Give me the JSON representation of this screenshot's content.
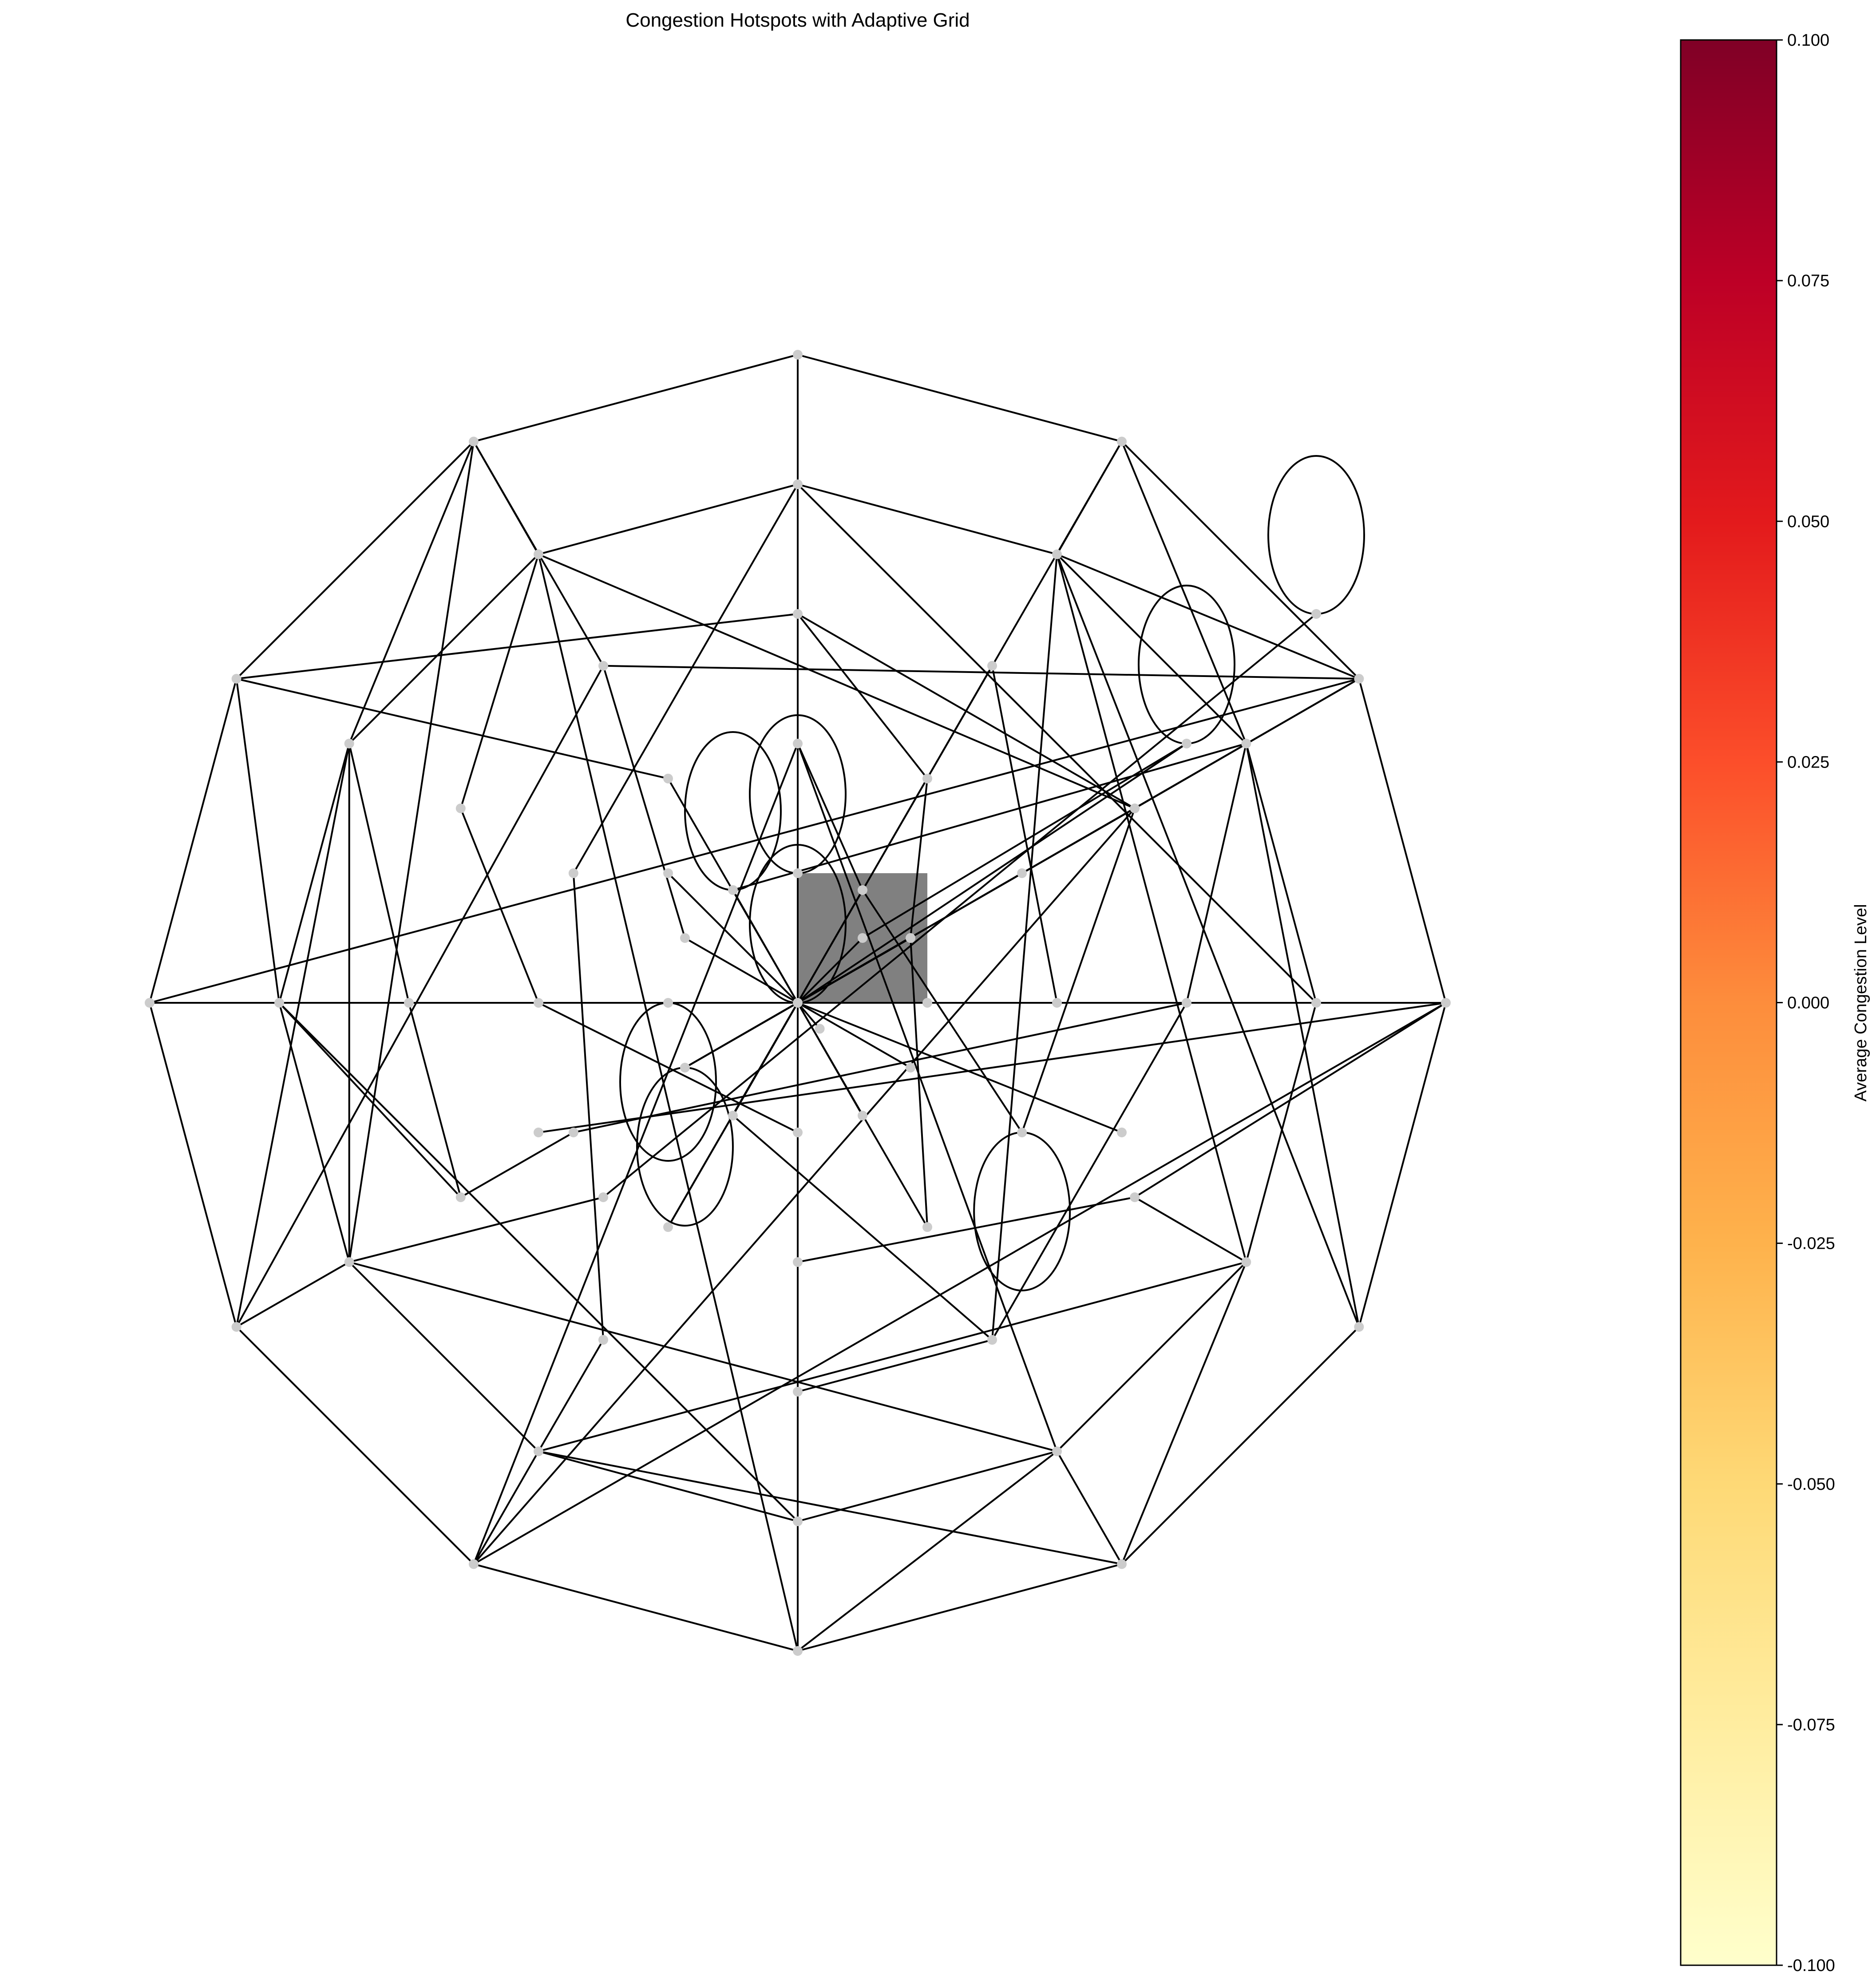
{
  "chart_data": {
    "type": "network",
    "title": "Congestion Hotspots with Adaptive Grid",
    "colorbar": {
      "label": "Average Congestion Level",
      "range": [
        -0.1,
        0.1
      ],
      "ticks": [
        "0.100",
        "0.075",
        "0.050",
        "0.025",
        "0.000",
        "-0.025",
        "-0.050",
        "-0.075",
        "-0.100"
      ],
      "colormap": "YlOrRd",
      "colors": [
        "#ffffcc",
        "#ffeda0",
        "#fed976",
        "#feb24c",
        "#fd8d3c",
        "#fc4e2a",
        "#e31a1c",
        "#bd0026",
        "#800026"
      ]
    },
    "hotspot_color": "#808080",
    "node_color": "#cccccc",
    "edge_color": "#000000",
    "nodes": [
      {
        "id": "n0",
        "x": 0.0,
        "y": 5.0
      },
      {
        "id": "n1",
        "x": 2.5,
        "y": 4.33
      },
      {
        "id": "n2",
        "x": 4.33,
        "y": 2.5
      },
      {
        "id": "n3",
        "x": 5.0,
        "y": 0.0
      },
      {
        "id": "n4",
        "x": 4.33,
        "y": -2.5
      },
      {
        "id": "n5",
        "x": 2.5,
        "y": -4.33
      },
      {
        "id": "n6",
        "x": 0.0,
        "y": -5.0
      },
      {
        "id": "n7",
        "x": -2.5,
        "y": -4.33
      },
      {
        "id": "n8",
        "x": -4.33,
        "y": -2.5
      },
      {
        "id": "n9",
        "x": -5.0,
        "y": 0.0
      },
      {
        "id": "n10",
        "x": -4.33,
        "y": 2.5
      },
      {
        "id": "n11",
        "x": -2.5,
        "y": 4.33
      },
      {
        "id": "n12",
        "x": 0.0,
        "y": 4.0
      },
      {
        "id": "n13",
        "x": 2.0,
        "y": 3.46
      },
      {
        "id": "n14",
        "x": 3.46,
        "y": 2.0
      },
      {
        "id": "n15",
        "x": 4.0,
        "y": 0.0
      },
      {
        "id": "n16",
        "x": 3.46,
        "y": -2.0
      },
      {
        "id": "n17",
        "x": 2.0,
        "y": -3.46
      },
      {
        "id": "n18",
        "x": 0.0,
        "y": -4.0
      },
      {
        "id": "n19",
        "x": -2.0,
        "y": -3.46
      },
      {
        "id": "n20",
        "x": -3.46,
        "y": -2.0
      },
      {
        "id": "n21",
        "x": -4.0,
        "y": 0.0
      },
      {
        "id": "n22",
        "x": -3.46,
        "y": 2.0
      },
      {
        "id": "n23",
        "x": -2.0,
        "y": 3.46
      },
      {
        "id": "n24",
        "x": 0.0,
        "y": 3.0
      },
      {
        "id": "n25",
        "x": 1.5,
        "y": 2.6
      },
      {
        "id": "n26",
        "x": 2.6,
        "y": 1.5
      },
      {
        "id": "n27",
        "x": 3.0,
        "y": 0.0
      },
      {
        "id": "n28",
        "x": 2.6,
        "y": -1.5
      },
      {
        "id": "n29",
        "x": 1.5,
        "y": -2.6
      },
      {
        "id": "n30",
        "x": 0.0,
        "y": -3.0
      },
      {
        "id": "n31",
        "x": -1.5,
        "y": -2.6
      },
      {
        "id": "n32",
        "x": -2.6,
        "y": -1.5
      },
      {
        "id": "n33",
        "x": -3.0,
        "y": 0.0
      },
      {
        "id": "n34",
        "x": -2.6,
        "y": 1.5
      },
      {
        "id": "n35",
        "x": -1.5,
        "y": 2.6
      },
      {
        "id": "n36",
        "x": 0.0,
        "y": 2.0
      },
      {
        "id": "n37",
        "x": 1.0,
        "y": 1.73
      },
      {
        "id": "n38",
        "x": 1.73,
        "y": 1.0
      },
      {
        "id": "n39",
        "x": 2.0,
        "y": 0.0
      },
      {
        "id": "n40",
        "x": 1.73,
        "y": -1.0
      },
      {
        "id": "n41",
        "x": 1.0,
        "y": -1.73
      },
      {
        "id": "n42",
        "x": 0.0,
        "y": -2.0
      },
      {
        "id": "n43",
        "x": -1.0,
        "y": -1.73
      },
      {
        "id": "n44",
        "x": -1.73,
        "y": -1.0
      },
      {
        "id": "n45",
        "x": -2.0,
        "y": 0.0
      },
      {
        "id": "n46",
        "x": -1.73,
        "y": 1.0
      },
      {
        "id": "n47",
        "x": -1.0,
        "y": 1.73
      },
      {
        "id": "n48",
        "x": 0.0,
        "y": 1.0
      },
      {
        "id": "n49",
        "x": 0.5,
        "y": 0.87
      },
      {
        "id": "n50",
        "x": 0.87,
        "y": 0.5
      },
      {
        "id": "n51",
        "x": 1.0,
        "y": 0.0
      },
      {
        "id": "n52",
        "x": 0.87,
        "y": -0.5
      },
      {
        "id": "n53",
        "x": 0.5,
        "y": -0.87
      },
      {
        "id": "n54",
        "x": 0.0,
        "y": -1.0
      },
      {
        "id": "n55",
        "x": -0.5,
        "y": -0.87
      },
      {
        "id": "n56",
        "x": -0.87,
        "y": -0.5
      },
      {
        "id": "n57",
        "x": -1.0,
        "y": 0.0
      },
      {
        "id": "n58",
        "x": -0.87,
        "y": 0.5
      },
      {
        "id": "n59",
        "x": -0.5,
        "y": 0.87
      },
      {
        "id": "n60",
        "x": 0.0,
        "y": 0.0
      },
      {
        "id": "n61",
        "x": 0.5,
        "y": 0.5
      },
      {
        "id": "n62",
        "x": 0.87,
        "y": 0.5
      },
      {
        "id": "n63",
        "x": 0.17,
        "y": -0.2
      },
      {
        "id": "n64",
        "x": -1.0,
        "y": 1.0
      },
      {
        "id": "n65",
        "x": -2.0,
        "y": -1.0
      },
      {
        "id": "n66",
        "x": -1.5,
        "y": -1.5
      },
      {
        "id": "n67",
        "x": 2.5,
        "y": -1.0
      },
      {
        "id": "n68",
        "x": 3.0,
        "y": 2.0
      },
      {
        "id": "n69",
        "x": 4.0,
        "y": 3.0
      }
    ],
    "edges": [
      [
        "n0",
        "n1"
      ],
      [
        "n1",
        "n2"
      ],
      [
        "n2",
        "n3"
      ],
      [
        "n3",
        "n4"
      ],
      [
        "n4",
        "n5"
      ],
      [
        "n5",
        "n6"
      ],
      [
        "n6",
        "n7"
      ],
      [
        "n7",
        "n8"
      ],
      [
        "n8",
        "n9"
      ],
      [
        "n9",
        "n10"
      ],
      [
        "n10",
        "n11"
      ],
      [
        "n11",
        "n0"
      ],
      [
        "n12",
        "n13"
      ],
      [
        "n13",
        "n14"
      ],
      [
        "n14",
        "n15"
      ],
      [
        "n15",
        "n16"
      ],
      [
        "n16",
        "n17"
      ],
      [
        "n17",
        "n18"
      ],
      [
        "n18",
        "n19"
      ],
      [
        "n19",
        "n20"
      ],
      [
        "n20",
        "n21"
      ],
      [
        "n21",
        "n22"
      ],
      [
        "n22",
        "n23"
      ],
      [
        "n23",
        "n12"
      ],
      [
        "n0",
        "n12"
      ],
      [
        "n6",
        "n18"
      ],
      [
        "n12",
        "n24"
      ],
      [
        "n18",
        "n30"
      ],
      [
        "n24",
        "n36"
      ],
      [
        "n30",
        "n42"
      ],
      [
        "n36",
        "n48"
      ],
      [
        "n42",
        "n54"
      ],
      [
        "n48",
        "n60"
      ],
      [
        "n54",
        "n60"
      ],
      [
        "n9",
        "n21"
      ],
      [
        "n21",
        "n33"
      ],
      [
        "n33",
        "n45"
      ],
      [
        "n45",
        "n57"
      ],
      [
        "n57",
        "n60"
      ],
      [
        "n60",
        "n51"
      ],
      [
        "n51",
        "n39"
      ],
      [
        "n39",
        "n27"
      ],
      [
        "n27",
        "n15"
      ],
      [
        "n15",
        "n3"
      ],
      [
        "n1",
        "n13"
      ],
      [
        "n11",
        "n23"
      ],
      [
        "n7",
        "n19"
      ],
      [
        "n5",
        "n17"
      ],
      [
        "n0",
        "n24"
      ],
      [
        "n0",
        "n30"
      ],
      [
        "n11",
        "n22"
      ],
      [
        "n11",
        "n20"
      ],
      [
        "n11",
        "n35"
      ],
      [
        "n1",
        "n14"
      ],
      [
        "n1",
        "n43"
      ],
      [
        "n2",
        "n13"
      ],
      [
        "n2",
        "n26"
      ],
      [
        "n2",
        "n56"
      ],
      [
        "n2",
        "n35"
      ],
      [
        "n10",
        "n21"
      ],
      [
        "n10",
        "n24"
      ],
      [
        "n10",
        "n47"
      ],
      [
        "n9",
        "n2"
      ],
      [
        "n9",
        "n3"
      ],
      [
        "n8",
        "n22"
      ],
      [
        "n8",
        "n35"
      ],
      [
        "n8",
        "n20"
      ],
      [
        "n7",
        "n3"
      ],
      [
        "n7",
        "n26"
      ],
      [
        "n7",
        "n36"
      ],
      [
        "n4",
        "n14"
      ],
      [
        "n4",
        "n13"
      ],
      [
        "n5",
        "n16"
      ],
      [
        "n5",
        "n19"
      ],
      [
        "n6",
        "n23"
      ],
      [
        "n6",
        "n17"
      ],
      [
        "n12",
        "n15"
      ],
      [
        "n12",
        "n46"
      ],
      [
        "n13",
        "n16"
      ],
      [
        "n13",
        "n29"
      ],
      [
        "n14",
        "n27"
      ],
      [
        "n14",
        "n59"
      ],
      [
        "n16",
        "n19"
      ],
      [
        "n16",
        "n28"
      ],
      [
        "n17",
        "n36"
      ],
      [
        "n17",
        "n20"
      ],
      [
        "n18",
        "n21"
      ],
      [
        "n19",
        "n31"
      ],
      [
        "n20",
        "n22"
      ],
      [
        "n20",
        "n66"
      ],
      [
        "n21",
        "n32"
      ],
      [
        "n22",
        "n33"
      ],
      [
        "n23",
        "n26"
      ],
      [
        "n23",
        "n34"
      ],
      [
        "n24",
        "n37"
      ],
      [
        "n24",
        "n26"
      ],
      [
        "n25",
        "n39"
      ],
      [
        "n25",
        "n43"
      ],
      [
        "n26",
        "n40"
      ],
      [
        "n26",
        "n56"
      ],
      [
        "n27",
        "n44"
      ],
      [
        "n27",
        "n29"
      ],
      [
        "n28",
        "n42"
      ],
      [
        "n28",
        "n3"
      ],
      [
        "n29",
        "n55"
      ],
      [
        "n30",
        "n29"
      ],
      [
        "n31",
        "n46"
      ],
      [
        "n32",
        "n44"
      ],
      [
        "n32",
        "n33"
      ],
      [
        "n34",
        "n45"
      ],
      [
        "n35",
        "n58"
      ],
      [
        "n36",
        "n49"
      ],
      [
        "n37",
        "n50"
      ],
      [
        "n38",
        "n60"
      ],
      [
        "n41",
        "n60"
      ],
      [
        "n43",
        "n60"
      ],
      [
        "n45",
        "n54"
      ],
      [
        "n47",
        "n60"
      ],
      [
        "n49",
        "n60"
      ],
      [
        "n49",
        "n40"
      ],
      [
        "n50",
        "n60"
      ],
      [
        "n50",
        "n41"
      ],
      [
        "n52",
        "n60"
      ],
      [
        "n53",
        "n60"
      ],
      [
        "n55",
        "n60"
      ],
      [
        "n56",
        "n60"
      ],
      [
        "n58",
        "n60"
      ],
      [
        "n59",
        "n60"
      ],
      [
        "n61",
        "n60"
      ],
      [
        "n62",
        "n60"
      ],
      [
        "n63",
        "n60"
      ],
      [
        "n64",
        "n60"
      ],
      [
        "n65",
        "n3"
      ],
      [
        "n66",
        "n69"
      ],
      [
        "n67",
        "n60"
      ],
      [
        "n68",
        "n60"
      ],
      [
        "n68",
        "n61"
      ]
    ],
    "self_loops": [
      {
        "node": "n69",
        "direction": "up",
        "size": 1.0
      },
      {
        "node": "n68",
        "direction": "up",
        "size": 1.0
      },
      {
        "node": "n48",
        "direction": "up",
        "size": 1.0
      },
      {
        "node": "n60",
        "direction": "up",
        "size": 1.0
      },
      {
        "node": "n59",
        "direction": "up",
        "size": 1.0
      },
      {
        "node": "n57",
        "direction": "down",
        "size": 1.0
      },
      {
        "node": "n56",
        "direction": "down",
        "size": 1.0
      },
      {
        "node": "n40",
        "direction": "down",
        "size": 1.0
      }
    ],
    "hotspot_cell": {
      "x0": 0.0,
      "y0": 0.0,
      "x1": 1.0,
      "y1": 1.0,
      "value": 0.0
    },
    "xlim": [
      -5.1,
      5.1
    ],
    "ylim": [
      -5.1,
      5.1
    ],
    "grid": false
  }
}
